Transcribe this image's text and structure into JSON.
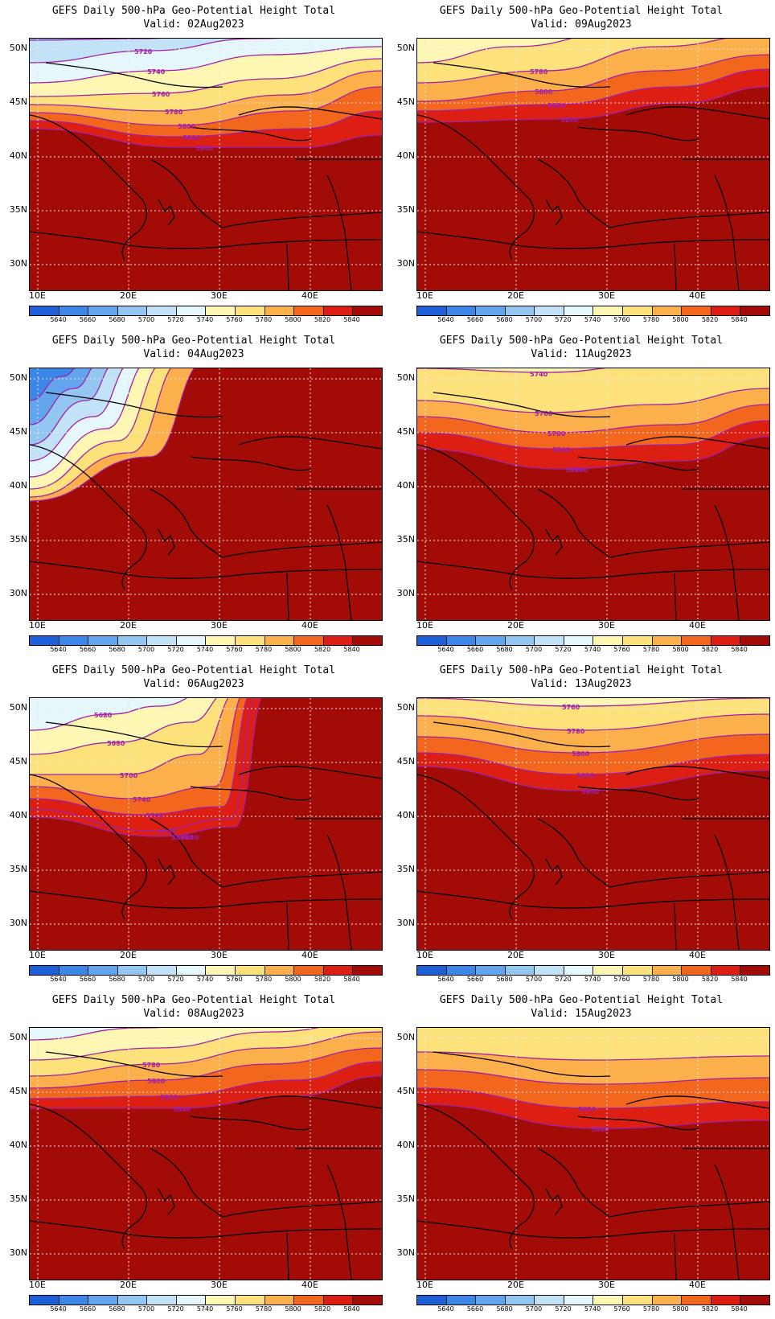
{
  "panel_title": "GEFS Daily 500-hPa Geo-Potential Height Total",
  "lat_labels": [
    "50N",
    "45N",
    "40N",
    "35N",
    "30N"
  ],
  "lon_labels": [
    "10E",
    "20E",
    "30E",
    "40E"
  ],
  "colorbar": {
    "levels": [
      "5640",
      "5660",
      "5680",
      "5700",
      "5720",
      "5740",
      "5760",
      "5780",
      "5800",
      "5820",
      "5840"
    ],
    "colors": [
      "#1c5fd6",
      "#3b86e6",
      "#62a5ee",
      "#94c6f2",
      "#c2e3f7",
      "#e5f7fb",
      "#fdf7b3",
      "#fde17a",
      "#fcb04b",
      "#f3661e",
      "#dc1f12",
      "#a30b06"
    ]
  },
  "contour_color": "#a020a8",
  "map_fill_color": "#a30b06",
  "panels": [
    {
      "valid": "Valid: 02Aug2023",
      "labels": [
        "5720",
        "5740",
        "5760",
        "5780",
        "5800",
        "5820",
        "5840"
      ]
    },
    {
      "valid": "Valid: 09Aug2023",
      "labels": [
        "5780",
        "5800",
        "5820",
        "5840"
      ]
    },
    {
      "valid": "Valid: 04Aug2023",
      "labels": []
    },
    {
      "valid": "Valid: 11Aug2023",
      "labels": [
        "5740",
        "5760",
        "5780",
        "5800",
        "5820",
        "5840"
      ]
    },
    {
      "valid": "Valid: 06Aug2023",
      "labels": [
        "5680",
        "5680",
        "5700",
        "5740",
        "5760",
        "5780",
        "5800",
        "5820",
        "5840"
      ]
    },
    {
      "valid": "Valid: 13Aug2023",
      "labels": [
        "5760",
        "5780",
        "5800",
        "5820",
        "5840"
      ]
    },
    {
      "valid": "Valid: 08Aug2023",
      "labels": [
        "5780",
        "5800",
        "5820",
        "5840"
      ]
    },
    {
      "valid": "Valid: 15Aug2023",
      "labels": [
        "5820",
        "5840"
      ]
    }
  ]
}
